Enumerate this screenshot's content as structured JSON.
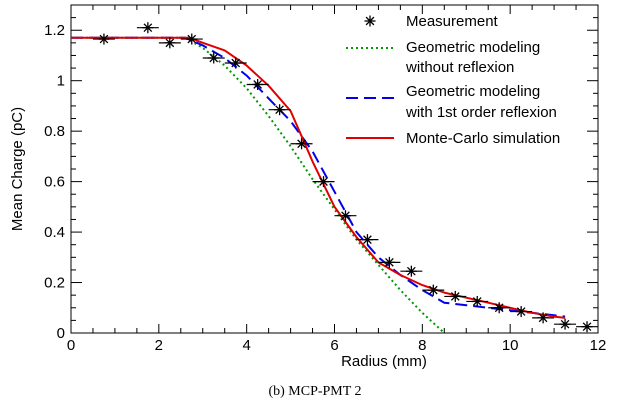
{
  "caption": "(b) MCP-PMT 2",
  "chart_data": {
    "type": "scatter",
    "xlabel": "Radius (mm)",
    "ylabel": "Mean Charge (pC)",
    "xlim": [
      0,
      12
    ],
    "ylim": [
      0,
      1.3
    ],
    "x_ticks": [
      0,
      2,
      4,
      6,
      8,
      10,
      12
    ],
    "x_tick_labels": [
      "0",
      "2",
      "4",
      "6",
      "8",
      "10",
      "12"
    ],
    "y_ticks": [
      0,
      0.2,
      0.4,
      0.6,
      0.8,
      1,
      1.2
    ],
    "y_tick_labels": [
      "0",
      "0.2",
      "0.4",
      "0.6",
      "0.8",
      "1",
      "1.2"
    ],
    "grid": false,
    "legend_position": "top-right",
    "measurement": {
      "name": "Measurement",
      "x_error": 0.25,
      "points": [
        [
          0.75,
          1.165
        ],
        [
          1.75,
          1.21
        ],
        [
          2.25,
          1.15
        ],
        [
          2.75,
          1.165
        ],
        [
          3.25,
          1.09
        ],
        [
          3.75,
          1.07
        ],
        [
          4.25,
          0.985
        ],
        [
          4.75,
          0.885
        ],
        [
          5.25,
          0.75
        ],
        [
          5.75,
          0.6
        ],
        [
          6.25,
          0.465
        ],
        [
          6.75,
          0.37
        ],
        [
          7.25,
          0.28
        ],
        [
          7.75,
          0.245
        ],
        [
          8.25,
          0.17
        ],
        [
          8.75,
          0.145
        ],
        [
          9.25,
          0.125
        ],
        [
          9.75,
          0.1
        ],
        [
          10.25,
          0.085
        ],
        [
          10.75,
          0.06
        ],
        [
          11.25,
          0.035
        ],
        [
          11.75,
          0.025
        ]
      ]
    },
    "series": [
      {
        "name": "Geometric modeling without reflexion",
        "color": "#009900",
        "style": "dotted",
        "points": [
          [
            0,
            1.17
          ],
          [
            2.6,
            1.17
          ],
          [
            3,
            1.13
          ],
          [
            3.5,
            1.06
          ],
          [
            4,
            0.97
          ],
          [
            4.5,
            0.86
          ],
          [
            5,
            0.74
          ],
          [
            5.5,
            0.61
          ],
          [
            6,
            0.49
          ],
          [
            6.5,
            0.37
          ],
          [
            7,
            0.27
          ],
          [
            7.5,
            0.17
          ],
          [
            8,
            0.08
          ],
          [
            8.5,
            0.0
          ]
        ]
      },
      {
        "name": "Geometric modeling with 1st order reflexion",
        "color": "#0000ee",
        "style": "dashed",
        "points": [
          [
            0,
            1.17
          ],
          [
            2.6,
            1.17
          ],
          [
            3,
            1.14
          ],
          [
            3.5,
            1.09
          ],
          [
            4,
            1.02
          ],
          [
            4.5,
            0.93
          ],
          [
            5,
            0.84
          ],
          [
            5.5,
            0.72
          ],
          [
            6,
            0.56
          ],
          [
            6.5,
            0.4
          ],
          [
            7,
            0.3
          ],
          [
            7.5,
            0.23
          ],
          [
            8,
            0.17
          ],
          [
            8.5,
            0.12
          ],
          [
            9,
            0.11
          ],
          [
            9.5,
            0.1
          ],
          [
            10,
            0.09
          ],
          [
            10.5,
            0.08
          ],
          [
            11,
            0.07
          ],
          [
            11.25,
            0.065
          ]
        ]
      },
      {
        "name": "Monte-Carlo simulation",
        "color": "#e00000",
        "style": "solid",
        "points": [
          [
            0,
            1.17
          ],
          [
            2.7,
            1.17
          ],
          [
            3,
            1.15
          ],
          [
            3.5,
            1.12
          ],
          [
            4,
            1.06
          ],
          [
            4.5,
            0.98
          ],
          [
            5,
            0.88
          ],
          [
            5.25,
            0.78
          ],
          [
            5.5,
            0.68
          ],
          [
            6,
            0.5
          ],
          [
            6.5,
            0.38
          ],
          [
            7,
            0.28
          ],
          [
            7.5,
            0.23
          ],
          [
            8,
            0.19
          ],
          [
            8.5,
            0.16
          ],
          [
            9,
            0.14
          ],
          [
            9.5,
            0.12
          ],
          [
            10,
            0.1
          ],
          [
            10.5,
            0.08
          ],
          [
            11,
            0.065
          ],
          [
            11.25,
            0.06
          ]
        ]
      }
    ]
  }
}
